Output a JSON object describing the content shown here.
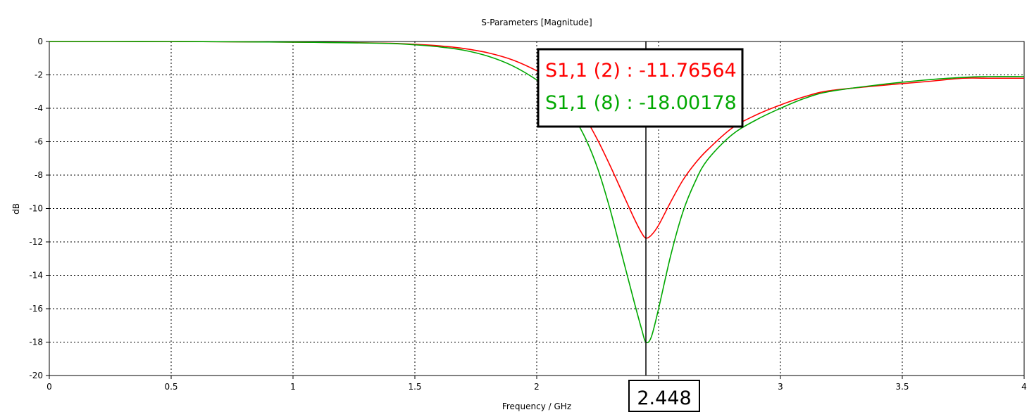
{
  "chart_data": {
    "type": "line",
    "title": "S-Parameters [Magnitude]",
    "xlabel": "Frequency / GHz",
    "ylabel": "dB",
    "xlim": [
      0,
      4
    ],
    "ylim": [
      -20,
      0
    ],
    "xticks": [
      0,
      0.5,
      1,
      1.5,
      2,
      2.5,
      3,
      3.5,
      4
    ],
    "xtick_labels": [
      "0",
      "0.5",
      "1",
      "1.5",
      "2",
      "2.5",
      "3",
      "3.5",
      "4"
    ],
    "yticks": [
      0,
      -2,
      -4,
      -6,
      -8,
      -10,
      -12,
      -14,
      -16,
      -18,
      -20
    ],
    "ytick_labels": [
      "0",
      "-2",
      "-4",
      "-6",
      "-8",
      "-10",
      "-12",
      "-14",
      "-16",
      "-18",
      "-20"
    ],
    "grid": true,
    "series": [
      {
        "name": "S1,1 (2)",
        "color": "#ff0000",
        "x": [
          0,
          0.25,
          0.5,
          0.75,
          1.0,
          1.25,
          1.4,
          1.5,
          1.6,
          1.7,
          1.8,
          1.9,
          2.0,
          2.05,
          2.1,
          2.15,
          2.2,
          2.25,
          2.3,
          2.35,
          2.4,
          2.43,
          2.448,
          2.47,
          2.5,
          2.55,
          2.6,
          2.65,
          2.7,
          2.8,
          2.9,
          3.0,
          3.1,
          3.2,
          3.4,
          3.6,
          3.75,
          3.85,
          4.0
        ],
        "y": [
          0,
          0,
          0,
          -0.02,
          -0.04,
          -0.07,
          -0.11,
          -0.17,
          -0.26,
          -0.42,
          -0.68,
          -1.1,
          -1.75,
          -2.2,
          -2.8,
          -3.6,
          -4.6,
          -5.9,
          -7.4,
          -9.0,
          -10.6,
          -11.45,
          -11.77,
          -11.6,
          -11.0,
          -9.6,
          -8.3,
          -7.3,
          -6.5,
          -5.2,
          -4.4,
          -3.8,
          -3.3,
          -2.95,
          -2.65,
          -2.4,
          -2.2,
          -2.2,
          -2.2
        ]
      },
      {
        "name": "S1,1 (8)",
        "color": "#00a800",
        "x": [
          0,
          0.25,
          0.5,
          0.75,
          1.0,
          1.25,
          1.4,
          1.5,
          1.6,
          1.7,
          1.8,
          1.9,
          2.0,
          2.05,
          2.1,
          2.15,
          2.2,
          2.25,
          2.3,
          2.35,
          2.4,
          2.43,
          2.448,
          2.47,
          2.5,
          2.55,
          2.6,
          2.65,
          2.7,
          2.8,
          2.9,
          3.0,
          3.1,
          3.2,
          3.4,
          3.6,
          3.75,
          3.85,
          4.0
        ],
        "y": [
          0,
          0,
          0,
          -0.02,
          -0.04,
          -0.08,
          -0.12,
          -0.2,
          -0.32,
          -0.52,
          -0.88,
          -1.45,
          -2.3,
          -2.9,
          -3.6,
          -4.5,
          -5.8,
          -7.6,
          -10.0,
          -12.8,
          -15.6,
          -17.2,
          -18.0,
          -17.7,
          -16.0,
          -12.8,
          -10.2,
          -8.4,
          -7.1,
          -5.6,
          -4.7,
          -4.0,
          -3.4,
          -3.0,
          -2.6,
          -2.3,
          -2.15,
          -2.1,
          -2.1
        ]
      }
    ],
    "marker": {
      "x": 2.448,
      "label": "2.448",
      "readouts": [
        {
          "series": "S1,1 (2)",
          "value": "-11.76564",
          "text": "S1,1 (2) : -11.76564",
          "color": "#ff0000"
        },
        {
          "series": "S1,1 (8)",
          "value": "-18.00178",
          "text": "S1,1 (8) : -18.00178",
          "color": "#00a800"
        }
      ]
    }
  }
}
